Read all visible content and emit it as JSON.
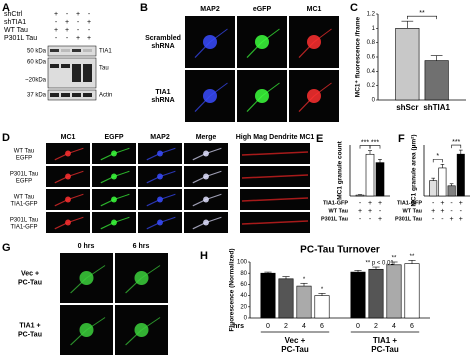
{
  "figure": {
    "A": {
      "label": "A",
      "rows": [
        {
          "name": "shCtrl",
          "signs": [
            "+",
            "-",
            "+",
            "-"
          ]
        },
        {
          "name": "shTIA1",
          "signs": [
            "-",
            "+",
            "-",
            "+"
          ]
        },
        {
          "name": "WT Tau",
          "signs": [
            "+",
            "+",
            "-",
            "-"
          ]
        },
        {
          "name": "P301L Tau",
          "signs": [
            "-",
            "-",
            "+",
            "+"
          ]
        }
      ],
      "markers": [
        "50 kDa",
        "60 kDa",
        "~20kDa",
        "37 kDa"
      ],
      "bands": [
        "TIA1",
        "Tau",
        "Actin"
      ]
    },
    "B": {
      "label": "B",
      "columns": [
        "MAP2",
        "eGFP",
        "MC1"
      ],
      "rows": [
        "Scrambled shRNA",
        "TIA1 shRNA"
      ]
    },
    "D": {
      "label": "D",
      "columns": [
        "MC1",
        "EGFP",
        "MAP2",
        "Merge",
        "High Mag Dendrite MC1"
      ],
      "rows": [
        "WT Tau EGFP",
        "P301L Tau EGFP",
        "WT Tau TIA1-GFP",
        "P301L Tau TIA1-GFP"
      ]
    },
    "G": {
      "label": "G",
      "columns": [
        "0 hrs",
        "6 hrs"
      ],
      "rows": [
        "Vec + PC-Tau",
        "TIA1 + PC-Tau"
      ]
    }
  },
  "chart_data": [
    {
      "type": "bar",
      "panel": "C",
      "ylabel": "MC1⁺ fluorescence /frame",
      "categories": [
        "shScr",
        "shTIA1"
      ],
      "values": [
        1.0,
        0.55
      ],
      "errors": [
        0.1,
        0.07
      ],
      "colors": [
        "#c8c8c8",
        "#707070"
      ],
      "ylim": [
        0,
        1.2
      ],
      "yticks": [
        0,
        0.2,
        0.4,
        0.6,
        0.8,
        1,
        1.2
      ],
      "brackets": [
        {
          "between": [
            0,
            1
          ],
          "label": "**"
        }
      ]
    },
    {
      "type": "bar",
      "panel": "E",
      "ylabel": "MC1 granule count",
      "values": [
        2,
        90,
        72
      ],
      "errors": [
        1,
        8,
        7
      ],
      "colors": [
        "#ffffff",
        "#ffffff",
        "#000000"
      ],
      "ylim": [
        0,
        110
      ],
      "conditions": [
        {
          "name": "TIA1-GFP",
          "signs": [
            "-",
            "+",
            "+"
          ]
        },
        {
          "name": "WT Tau",
          "signs": [
            "+",
            "+",
            "-"
          ]
        },
        {
          "name": "P301L Tau",
          "signs": [
            "-",
            "-",
            "+"
          ]
        }
      ],
      "brackets": [
        {
          "between": [
            0,
            1
          ],
          "label": "***"
        },
        {
          "between": [
            1,
            2
          ],
          "label": "***"
        }
      ]
    },
    {
      "type": "bar",
      "panel": "F",
      "ylabel": "MC1 granule area (µm²)",
      "values": [
        0.3,
        0.55,
        0.2,
        0.82
      ],
      "errors": [
        0.05,
        0.07,
        0.04,
        0.08
      ],
      "colors": [
        "#e0e0e0",
        "#ffffff",
        "#808080",
        "#000000"
      ],
      "ylim": [
        0,
        1.0
      ],
      "conditions": [
        {
          "name": "TIA1-GFP",
          "signs": [
            "-",
            "+",
            "-",
            "+"
          ]
        },
        {
          "name": "WT Tau",
          "signs": [
            "+",
            "+",
            "-",
            "-"
          ]
        },
        {
          "name": "P301L Tau",
          "signs": [
            "-",
            "-",
            "+",
            "+"
          ]
        }
      ],
      "brackets": [
        {
          "between": [
            0,
            1
          ],
          "label": "*"
        },
        {
          "between": [
            2,
            3
          ],
          "label": "***"
        }
      ]
    },
    {
      "type": "bar",
      "panel": "H",
      "title": "PC-Tau Turnover",
      "ylabel": "Fluorescence (Normalized)",
      "x_label": "hrs",
      "categories": [
        "0",
        "2",
        "4",
        "6",
        "0",
        "2",
        "4",
        "6"
      ],
      "values": [
        80,
        70,
        57,
        40,
        82,
        87,
        95,
        97
      ],
      "errors": [
        2,
        4,
        5,
        4,
        3,
        4,
        5,
        6
      ],
      "colors": [
        "#000000",
        "#555555",
        "#aaaaaa",
        "#ffffff",
        "#000000",
        "#555555",
        "#aaaaaa",
        "#ffffff"
      ],
      "bar_labels": [
        null,
        null,
        "*",
        "*",
        null,
        null,
        "**",
        "**"
      ],
      "groups": [
        "Vec + PC-Tau",
        "TIA1 + PC-Tau"
      ],
      "annotation": "** p < 0.01",
      "ylim": [
        0,
        100
      ],
      "yticks": [
        0,
        20,
        40,
        60,
        80,
        100
      ]
    }
  ]
}
